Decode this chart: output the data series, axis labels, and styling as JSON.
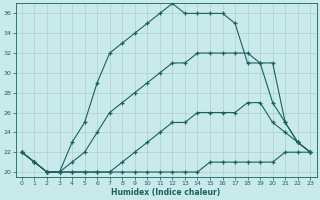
{
  "xlabel": "Humidex (Indice chaleur)",
  "bg_color": "#c8eaea",
  "grid_color": "#b0d0d0",
  "line_color": "#1a6060",
  "xlim": [
    -0.5,
    23.5
  ],
  "ylim": [
    19.5,
    37
  ],
  "xticks": [
    0,
    1,
    2,
    3,
    4,
    5,
    6,
    7,
    8,
    9,
    10,
    11,
    12,
    13,
    14,
    15,
    16,
    17,
    18,
    19,
    20,
    21,
    22,
    23
  ],
  "yticks": [
    20,
    22,
    24,
    26,
    28,
    30,
    32,
    34,
    36
  ],
  "line1_x": [
    0,
    1,
    2,
    3,
    4,
    5,
    6,
    7,
    8,
    9,
    10,
    11,
    12,
    13,
    14,
    15,
    16,
    17,
    18,
    19,
    20,
    21,
    22,
    23
  ],
  "line1_y": [
    22,
    21,
    20,
    20,
    20,
    20,
    20,
    20,
    20,
    20,
    20,
    20,
    20,
    20,
    20,
    21,
    21,
    21,
    21,
    21,
    21,
    22,
    22,
    22
  ],
  "line2_x": [
    0,
    1,
    2,
    3,
    4,
    5,
    6,
    7,
    8,
    9,
    10,
    11,
    12,
    13,
    14,
    15,
    16,
    17,
    18,
    19,
    20,
    21,
    22,
    23
  ],
  "line2_y": [
    22,
    21,
    20,
    20,
    20,
    20,
    20,
    20,
    21,
    22,
    23,
    24,
    25,
    25,
    26,
    26,
    26,
    26,
    27,
    27,
    25,
    24,
    23,
    22
  ],
  "line3_x": [
    0,
    1,
    2,
    3,
    4,
    5,
    6,
    7,
    8,
    9,
    10,
    11,
    12,
    13,
    14,
    15,
    16,
    17,
    18,
    19,
    20,
    21,
    22,
    23
  ],
  "line3_y": [
    22,
    21,
    20,
    20,
    21,
    22,
    24,
    26,
    27,
    28,
    29,
    30,
    31,
    31,
    32,
    32,
    32,
    32,
    32,
    31,
    27,
    25,
    23,
    22
  ],
  "line4_x": [
    0,
    1,
    2,
    3,
    4,
    5,
    6,
    7,
    8,
    9,
    10,
    11,
    12,
    13,
    14,
    15,
    16,
    17,
    18,
    19,
    20,
    21,
    22,
    23
  ],
  "line4_y": [
    22,
    21,
    20,
    20,
    23,
    25,
    29,
    32,
    33,
    34,
    35,
    36,
    37,
    36,
    36,
    36,
    36,
    35,
    31,
    31,
    31,
    25,
    23,
    22
  ]
}
